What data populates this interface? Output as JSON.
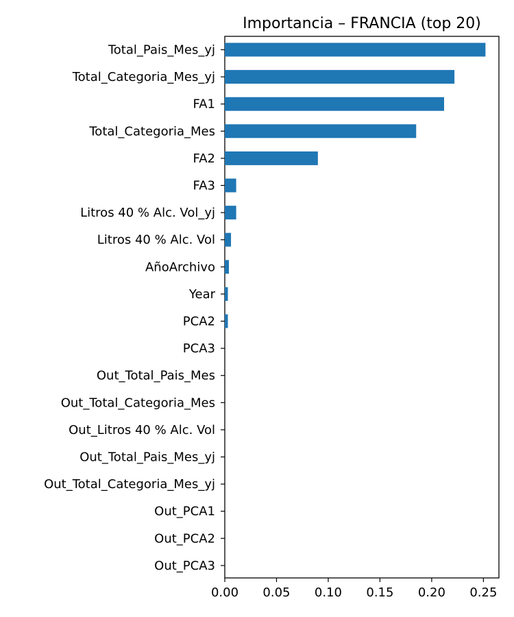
{
  "chart_data": {
    "type": "bar",
    "orientation": "horizontal",
    "title": "Importancia – FRANCIA (top 20)",
    "xlabel": "",
    "ylabel": "",
    "xlim": [
      0,
      0.265
    ],
    "xticks": [
      "0.00",
      "0.05",
      "0.10",
      "0.15",
      "0.20",
      "0.25"
    ],
    "bar_color": "#1f77b4",
    "categories": [
      "Total_Pais_Mes_yj",
      "Total_Categoria_Mes_yj",
      "FA1",
      "Total_Categoria_Mes",
      "FA2",
      "FA3",
      "Litros 40 % Alc. Vol_yj",
      "Litros 40 % Alc. Vol",
      "AñoArchivo",
      "Year",
      "PCA2",
      "PCA3",
      "Out_Total_Pais_Mes",
      "Out_Total_Categoria_Mes",
      "Out_Litros 40 % Alc. Vol",
      "Out_Total_Pais_Mes_yj",
      "Out_Total_Categoria_Mes_yj",
      "Out_PCA1",
      "Out_PCA2",
      "Out_PCA3"
    ],
    "values": [
      0.252,
      0.222,
      0.212,
      0.185,
      0.09,
      0.011,
      0.011,
      0.006,
      0.004,
      0.003,
      0.003,
      0,
      0,
      0,
      0,
      0,
      0,
      0,
      0,
      0
    ]
  }
}
